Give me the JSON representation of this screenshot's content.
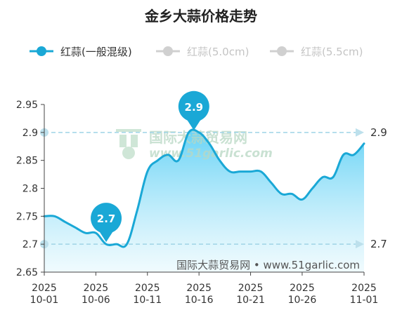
{
  "title": "金乡大蒜价格走势",
  "legend": [
    {
      "label": "红蒜(一般混级)",
      "color": "#1aa8d6",
      "active": true
    },
    {
      "label": "红蒜(5.0cm)",
      "color": "#cccccc",
      "active": false
    },
    {
      "label": "红蒜(5.5cm)",
      "color": "#cccccc",
      "active": false
    }
  ],
  "watermark": {
    "logo_cn": "国际大蒜贸易网",
    "logo_url": "www.51garlic.com",
    "footer": "国际大蒜贸易网 • www.51garlic.com"
  },
  "colors": {
    "series": "#1aa8d6",
    "area_top": "#5fd0f5",
    "area_bottom": "#e6f8fd",
    "ref_line": "#9fd4e6",
    "pin": "#1aa8d6"
  },
  "chart_data": {
    "type": "area",
    "title": "金乡大蒜价格走势",
    "xlabel": "",
    "ylabel": "",
    "ylim": [
      2.65,
      2.95
    ],
    "x_ticks": [
      {
        "day": 0,
        "year": "2025",
        "md": "10-01"
      },
      {
        "day": 5,
        "year": "2025",
        "md": "10-06"
      },
      {
        "day": 10,
        "year": "2025",
        "md": "10-11"
      },
      {
        "day": 15,
        "year": "2025",
        "md": "10-16"
      },
      {
        "day": 20,
        "year": "2025",
        "md": "10-21"
      },
      {
        "day": 25,
        "year": "2025",
        "md": "10-26"
      },
      {
        "day": 31,
        "year": "2025",
        "md": "11-01"
      }
    ],
    "y_ticks": [
      "2.95",
      "2.9",
      "2.85",
      "2.8",
      "2.75",
      "2.7",
      "2.65"
    ],
    "x": [
      0,
      1,
      2,
      3,
      4,
      5,
      6,
      7,
      8,
      9,
      10,
      11,
      12,
      13,
      14,
      15,
      16,
      17,
      18,
      19,
      20,
      21,
      22,
      23,
      24,
      25,
      26,
      27,
      28,
      29,
      30,
      31
    ],
    "series": [
      {
        "name": "红蒜(一般混级)",
        "values": [
          2.75,
          2.75,
          2.74,
          2.73,
          2.72,
          2.72,
          2.7,
          2.7,
          2.7,
          2.76,
          2.83,
          2.85,
          2.86,
          2.85,
          2.9,
          2.9,
          2.88,
          2.85,
          2.83,
          2.83,
          2.83,
          2.83,
          2.81,
          2.79,
          2.79,
          2.78,
          2.8,
          2.82,
          2.82,
          2.86,
          2.86,
          2.88
        ]
      }
    ],
    "reference_lines": [
      {
        "value": 2.9,
        "label": "2.9"
      },
      {
        "value": 2.7,
        "label": "2.7"
      }
    ],
    "markers": [
      {
        "day": 14.5,
        "value": 2.9,
        "label": "2.9"
      },
      {
        "day": 6,
        "value": 2.7,
        "label": "2.7"
      }
    ],
    "grid": false,
    "legend_position": "top-left"
  }
}
